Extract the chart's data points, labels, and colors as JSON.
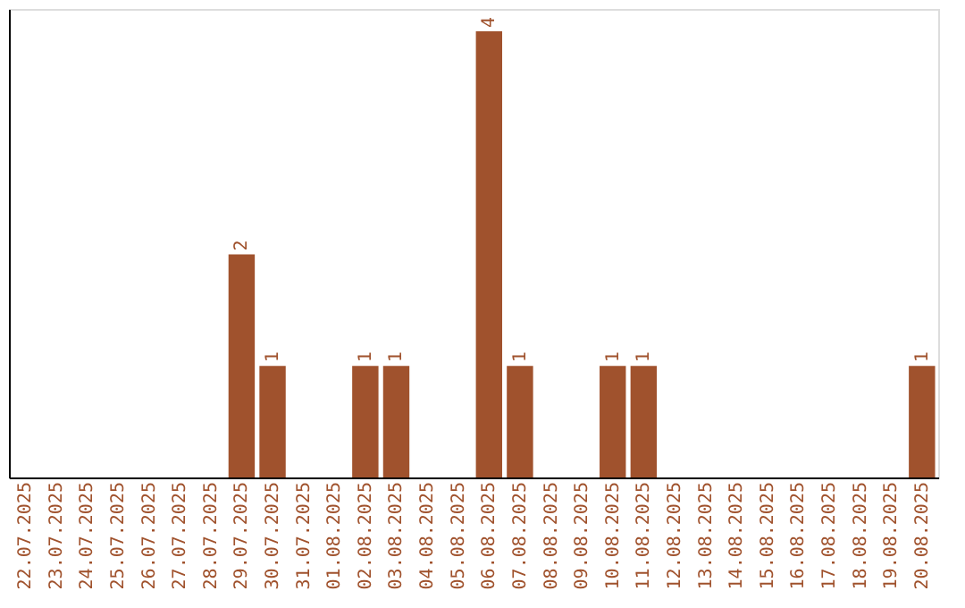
{
  "chart_data": {
    "type": "bar",
    "categories": [
      "22.07.2025",
      "23.07.2025",
      "24.07.2025",
      "25.07.2025",
      "26.07.2025",
      "27.07.2025",
      "28.07.2025",
      "29.07.2025",
      "30.07.2025",
      "31.07.2025",
      "01.08.2025",
      "02.08.2025",
      "03.08.2025",
      "04.08.2025",
      "05.08.2025",
      "06.08.2025",
      "07.08.2025",
      "08.08.2025",
      "09.08.2025",
      "10.08.2025",
      "11.08.2025",
      "12.08.2025",
      "13.08.2025",
      "14.08.2025",
      "15.08.2025",
      "16.08.2025",
      "17.08.2025",
      "18.08.2025",
      "19.08.2025",
      "20.08.2025"
    ],
    "values": [
      0,
      0,
      0,
      0,
      0,
      0,
      0,
      2,
      1,
      0,
      0,
      1,
      1,
      0,
      0,
      4,
      1,
      0,
      0,
      1,
      1,
      0,
      0,
      0,
      0,
      0,
      0,
      0,
      0,
      1
    ],
    "value_labels": [
      null,
      null,
      null,
      null,
      null,
      null,
      null,
      "2",
      "1",
      null,
      null,
      "1",
      "1",
      null,
      null,
      "4",
      "1",
      null,
      null,
      "1",
      "1",
      null,
      null,
      null,
      null,
      null,
      null,
      null,
      null,
      "1"
    ],
    "color": "#a0522d",
    "ylim": [
      0,
      4.2
    ],
    "tick_labels": "x",
    "grid": false
  }
}
